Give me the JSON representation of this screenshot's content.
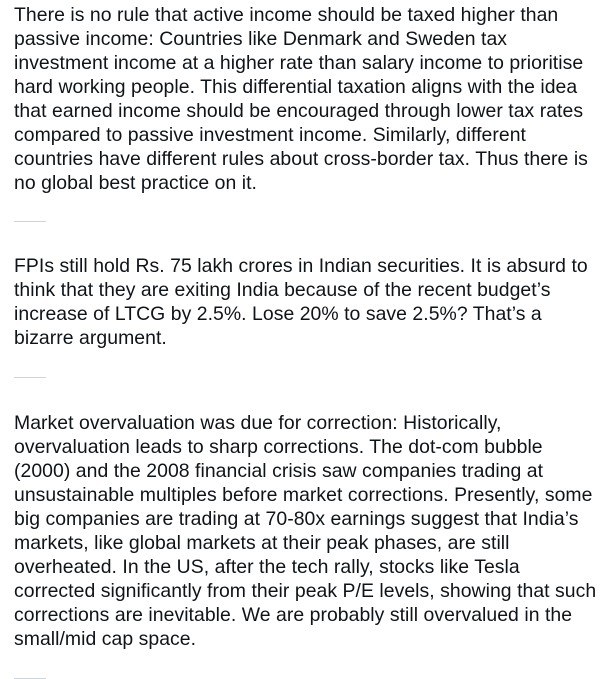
{
  "post": {
    "paragraphs": [
      "There is no rule that active income should be taxed higher than passive income: Countries like Denmark and Sweden tax investment income at a higher rate than salary income to prioritise hard working people. This differential taxation aligns with the idea that earned income should be encouraged through lower tax rates compared to passive investment income. Similarly, different countries have different rules about cross-border tax. Thus there is no global best practice on it.",
      "FPIs still hold Rs. 75 lakh crores in Indian securities. It is absurd to think that they are exiting India because of the recent budget’s increase of LTCG by 2.5%. Lose 20% to save 2.5%? That’s a bizarre argument.",
      "Market overvaluation was due for correction: Historically, overvaluation leads to sharp corrections. The dot-com bubble (2000) and the 2008 financial crisis saw companies trading at unsustainable multiples before market corrections. Presently, some big companies are trading at 70-80x earnings suggest that India’s markets, like global markets at their peak phases, are still overheated. In the US, after the tech rally, stocks like Tesla corrected significantly from their peak P/E levels, showing that such corrections are inevitable. We are probably still overvalued in the small/mid cap space."
    ]
  },
  "colors": {
    "text": "#0f1419",
    "divider": "#cfd4d9",
    "background": "#ffffff"
  }
}
